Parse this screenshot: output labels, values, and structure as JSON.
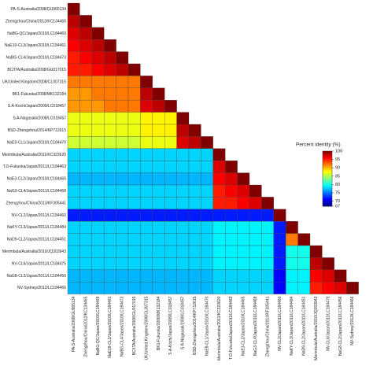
{
  "chart_data": {
    "type": "heatmap",
    "labels": [
      "PA-S-Australia/2008/GU965134",
      "Zhengzhou/China/2012/KC134465",
      "NaBG-QC/Japan/2010/LC184469",
      "NaE19-CL3/Japan/2010/LC184461",
      "NaBG-CL4/Japan/2010/LC184473",
      "BC/ITA/Australia/2008/GU017015",
      "UK/United Kingdom/2008/CL007315",
      "BK1-Fukuoka/2008/MK132184",
      "S.A-Kochi/Japan/2009/LC018457",
      "S.A-Nagasaki/2008/LC018457",
      "BSD-Zhengzhou/2014/KP712615",
      "NaE9-CL1/Japan/2010/LC184470",
      "Merimbula/Australia/2011/KC323620",
      "T.O-Fukuoka/Japan/2011/LC184463",
      "NaE3-CL2/Japan/2010/LC184465",
      "NaG3-CL4/Japan/2011/LC184468",
      "Zhengzhou/China/2013/KF305441",
      "NV-CL2/Japan/2011/LC184460",
      "NaKY-CL3/Japan/2011/LC184484",
      "NaD9-CL2/Japan/2011/LC184451",
      "Merimbula/Australia/2010/JQ303943",
      "NV-CL6/Japan/2011/LC184475",
      "NaG8-CL2/Japan/2011/LC184456",
      "NV-Sydney/2012/LC184466"
    ],
    "matrix": [
      [
        100
      ],
      [
        98,
        100
      ],
      [
        97,
        98,
        100
      ],
      [
        96,
        97,
        98,
        100
      ],
      [
        95,
        96,
        97,
        98,
        100
      ],
      [
        95,
        95,
        96,
        97,
        98,
        100
      ],
      [
        92,
        92,
        92,
        92,
        92,
        92,
        100
      ],
      [
        91,
        91,
        92,
        92,
        92,
        92,
        98,
        100
      ],
      [
        91,
        91,
        91,
        92,
        92,
        92,
        97,
        98,
        100
      ],
      [
        87,
        87,
        87,
        87,
        87,
        87,
        88,
        88,
        88,
        100
      ],
      [
        87,
        87,
        87,
        87,
        87,
        87,
        88,
        88,
        88,
        98,
        100
      ],
      [
        86,
        86,
        86,
        86,
        86,
        86,
        87,
        87,
        87,
        97,
        98,
        100
      ],
      [
        78,
        78,
        78,
        78,
        78,
        78,
        78,
        78,
        78,
        78,
        78,
        78,
        100
      ],
      [
        78,
        78,
        78,
        78,
        78,
        78,
        78,
        78,
        78,
        78,
        78,
        78,
        97,
        100
      ],
      [
        77,
        77,
        77,
        77,
        77,
        77,
        77,
        77,
        77,
        77,
        77,
        77,
        96,
        97,
        100
      ],
      [
        78,
        78,
        78,
        78,
        78,
        78,
        78,
        78,
        78,
        78,
        78,
        78,
        95,
        96,
        97,
        100
      ],
      [
        78,
        78,
        78,
        78,
        78,
        78,
        78,
        78,
        78,
        78,
        78,
        78,
        95,
        95,
        96,
        97,
        100
      ],
      [
        72,
        72,
        72,
        72,
        72,
        72,
        72,
        72,
        72,
        72,
        72,
        72,
        72,
        72,
        72,
        72,
        72,
        100
      ],
      [
        78,
        78,
        78,
        78,
        78,
        78,
        78,
        78,
        78,
        78,
        78,
        78,
        79,
        79,
        79,
        79,
        79,
        72,
        100
      ],
      [
        78,
        78,
        78,
        78,
        78,
        78,
        78,
        78,
        78,
        78,
        78,
        78,
        79,
        79,
        79,
        79,
        79,
        72,
        92,
        100
      ],
      [
        78,
        78,
        78,
        78,
        78,
        78,
        78,
        78,
        78,
        78,
        78,
        78,
        79,
        79,
        79,
        79,
        79,
        72,
        80,
        80,
        100
      ],
      [
        78,
        78,
        78,
        78,
        78,
        78,
        78,
        78,
        78,
        78,
        78,
        78,
        79,
        79,
        79,
        79,
        79,
        72,
        80,
        80,
        98,
        100
      ],
      [
        77,
        77,
        77,
        77,
        77,
        77,
        77,
        77,
        77,
        77,
        77,
        77,
        78,
        78,
        78,
        78,
        78,
        71,
        79,
        79,
        96,
        97,
        100
      ],
      [
        77,
        77,
        77,
        77,
        77,
        77,
        77,
        77,
        77,
        77,
        77,
        77,
        78,
        78,
        78,
        78,
        78,
        71,
        79,
        79,
        95,
        96,
        97,
        100
      ]
    ],
    "colorbar": {
      "label": "Percent identity (%)",
      "lim": [
        67,
        100
      ],
      "ticks": [
        67,
        70,
        75,
        80,
        85,
        90,
        95,
        100
      ],
      "colormap": "jet"
    }
  }
}
